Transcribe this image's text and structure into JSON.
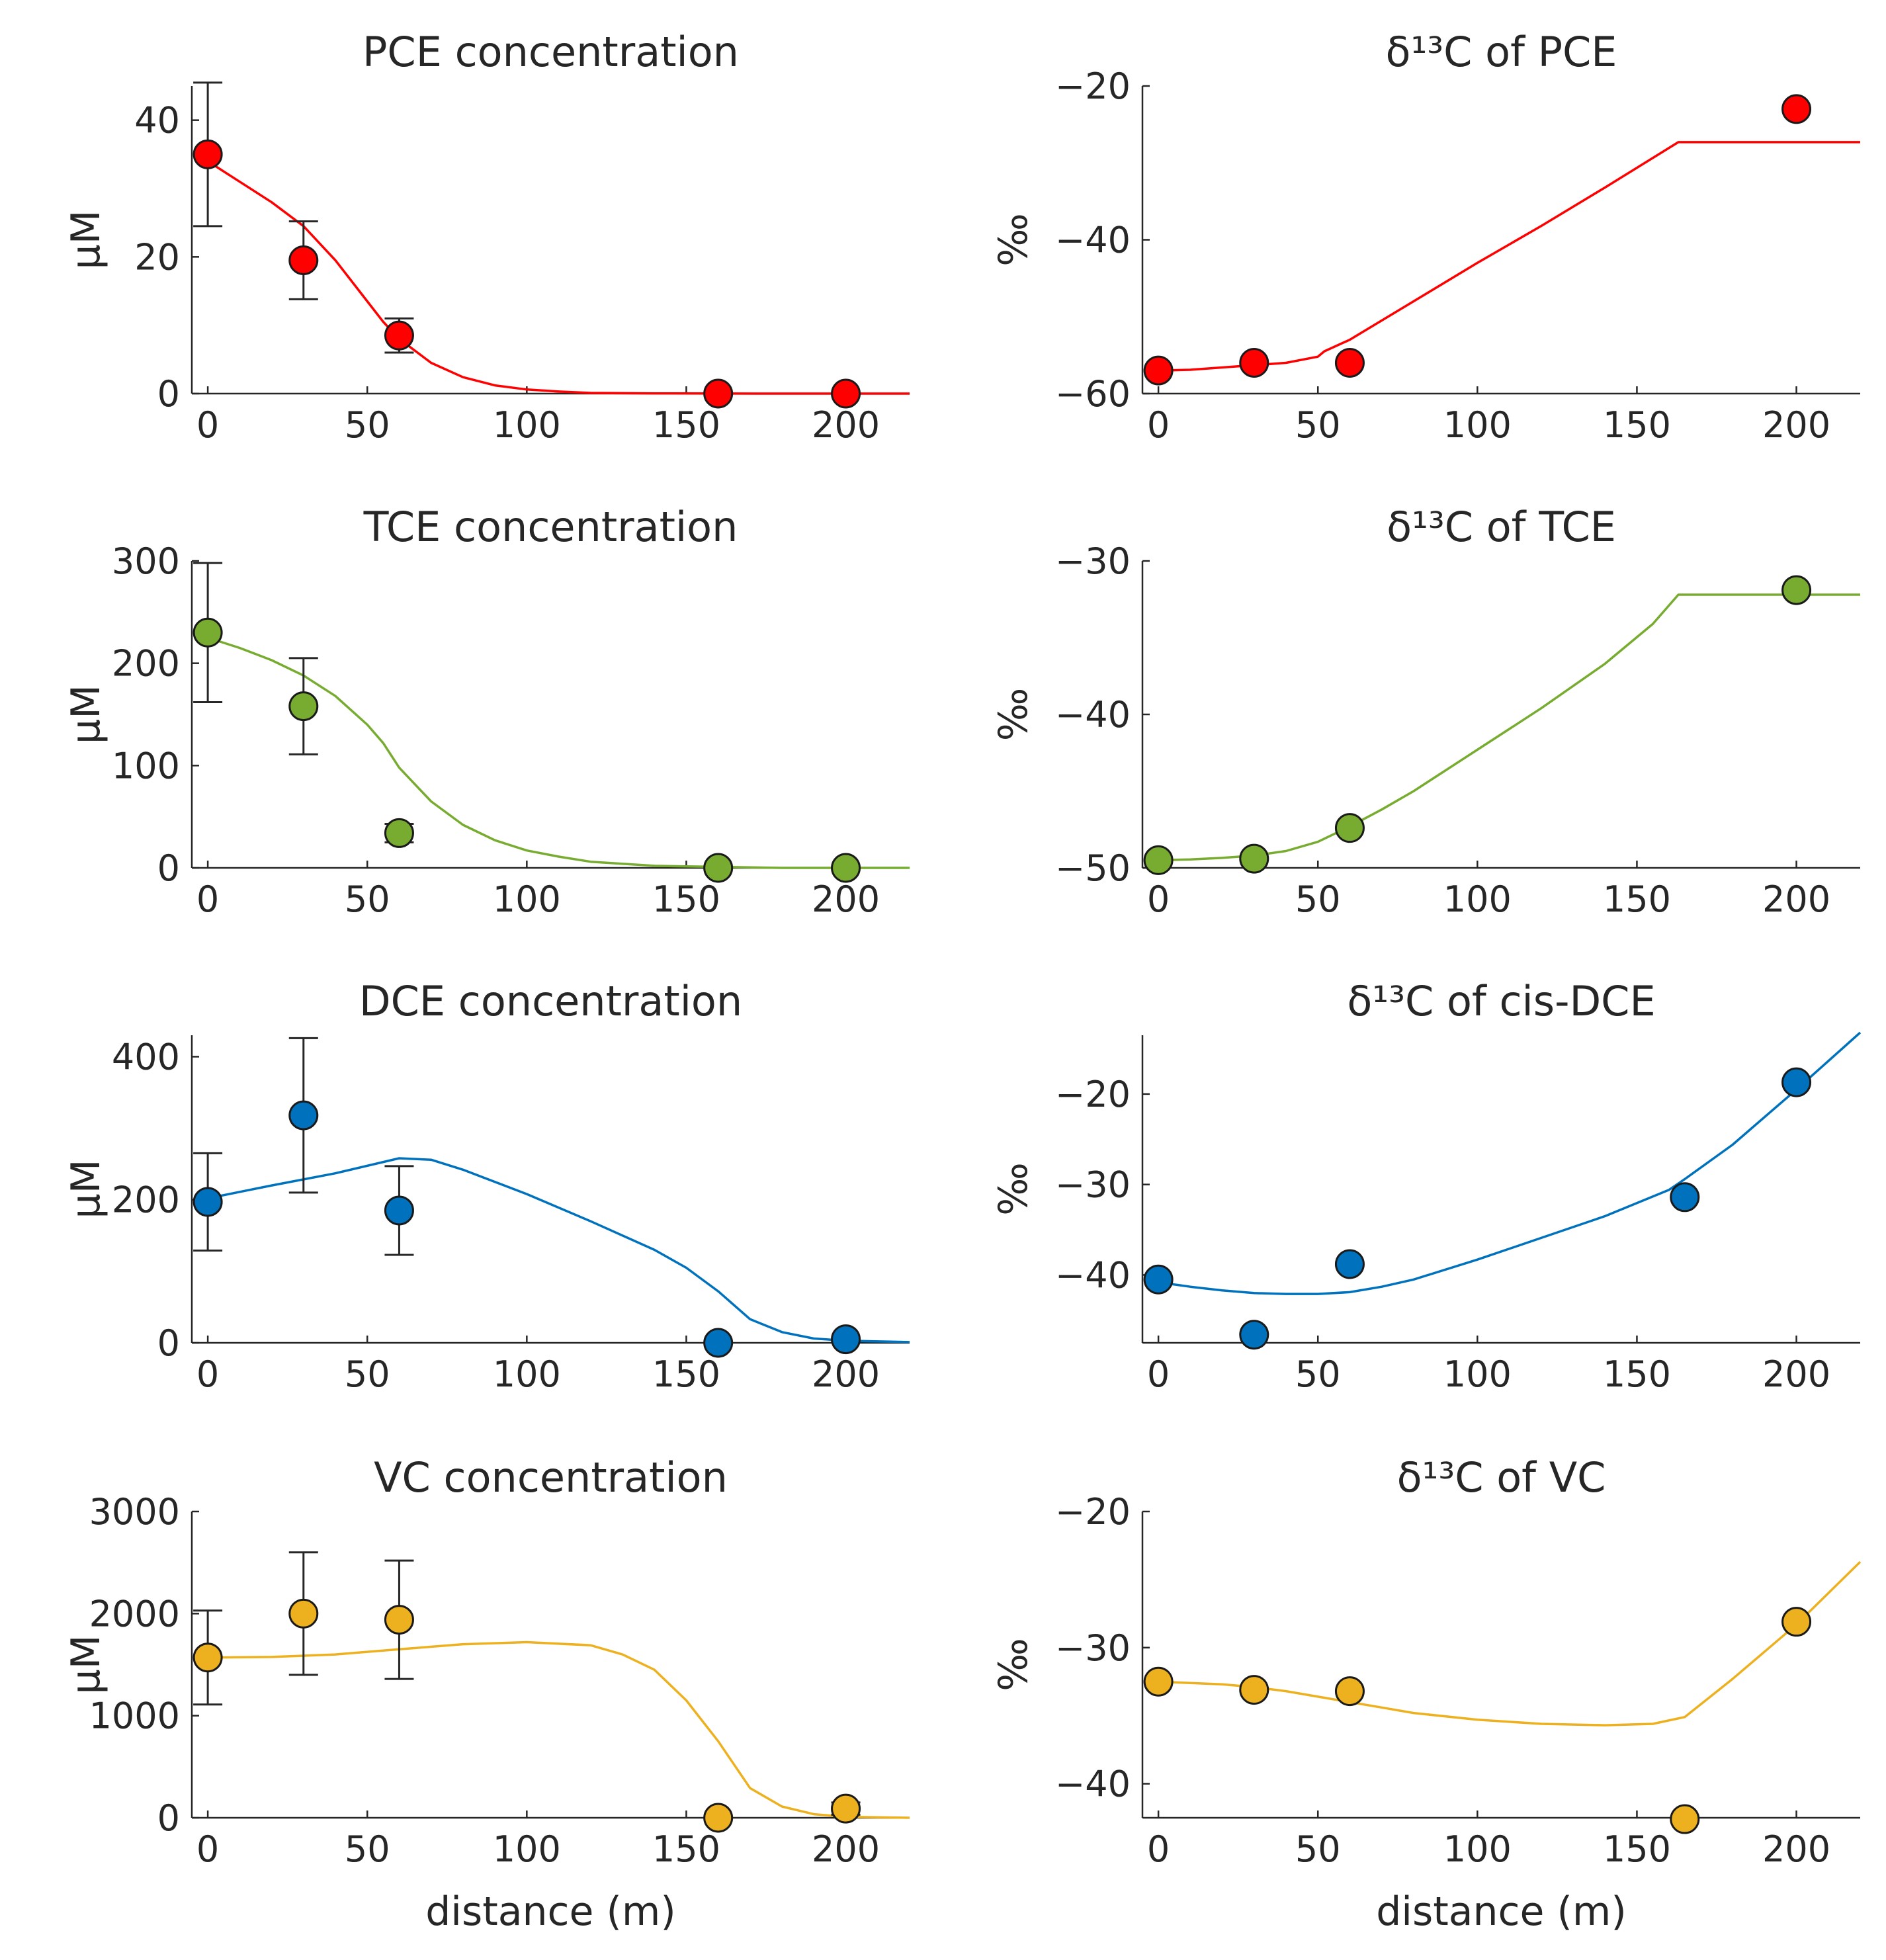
{
  "figure": {
    "xlabel": "distance (m)"
  },
  "chart_data": [
    {
      "id": "pce-conc",
      "type": "scatter+line",
      "title": "PCE concentration",
      "ylabel": "μM",
      "xlabel": "",
      "xlim": [
        -5,
        220
      ],
      "ylim": [
        0,
        45
      ],
      "xticks": [
        0,
        50,
        100,
        150,
        200
      ],
      "yticks": [
        0,
        20,
        40
      ],
      "color": "#ff0000",
      "points": {
        "x": [
          0,
          30,
          60,
          160,
          200
        ],
        "y": [
          35,
          19.5,
          8.5,
          0,
          0
        ],
        "err": [
          10.5,
          5.7,
          2.5,
          null,
          null
        ]
      },
      "model": {
        "x": [
          0,
          10,
          20,
          30,
          40,
          50,
          55,
          60,
          70,
          80,
          90,
          100,
          110,
          120,
          140,
          160,
          180,
          200,
          220
        ],
        "y": [
          34,
          31,
          28,
          24.5,
          19.5,
          13.5,
          10.5,
          8,
          4.5,
          2.4,
          1.2,
          0.6,
          0.3,
          0.1,
          0.03,
          0.01,
          0,
          0,
          0
        ]
      }
    },
    {
      "id": "pce-d13c",
      "type": "scatter+line",
      "title": "δ¹³C of PCE",
      "ylabel": "‰",
      "xlabel": "",
      "xlim": [
        -5,
        220
      ],
      "ylim": [
        -60,
        -20
      ],
      "xticks": [
        0,
        50,
        100,
        150,
        200
      ],
      "yticks": [
        -60,
        -40,
        -20
      ],
      "color": "#ff0000",
      "points": {
        "x": [
          0,
          30,
          60,
          200
        ],
        "y": [
          -57,
          -56,
          -56,
          -23
        ],
        "err": [
          null,
          null,
          null,
          null
        ]
      },
      "model": {
        "x": [
          0,
          10,
          20,
          30,
          40,
          50,
          52,
          60,
          80,
          100,
          120,
          140,
          163,
          180,
          200,
          220
        ],
        "y": [
          -57,
          -56.9,
          -56.6,
          -56.3,
          -56,
          -55.2,
          -54.5,
          -53,
          -48,
          -43,
          -38.2,
          -33.2,
          -27.3,
          -27.3,
          -27.3,
          -27.3
        ]
      }
    },
    {
      "id": "tce-conc",
      "type": "scatter+line",
      "title": "TCE concentration",
      "ylabel": "μM",
      "xlabel": "",
      "xlim": [
        -5,
        220
      ],
      "ylim": [
        0,
        300
      ],
      "xticks": [
        0,
        50,
        100,
        150,
        200
      ],
      "yticks": [
        0,
        100,
        200,
        300
      ],
      "color": "#77ac30",
      "points": {
        "x": [
          0,
          30,
          60,
          160,
          200
        ],
        "y": [
          230,
          158,
          34,
          0,
          0
        ],
        "err": [
          68,
          47,
          9,
          null,
          null
        ]
      },
      "model": {
        "x": [
          0,
          10,
          20,
          30,
          40,
          50,
          55,
          60,
          70,
          80,
          90,
          100,
          110,
          120,
          140,
          160,
          180,
          200,
          220
        ],
        "y": [
          225,
          215,
          203,
          188,
          168,
          140,
          122,
          98,
          65,
          42,
          27,
          17,
          11,
          6,
          2,
          1,
          0,
          0,
          0
        ]
      }
    },
    {
      "id": "tce-d13c",
      "type": "scatter+line",
      "title": "δ¹³C of TCE",
      "ylabel": "‰",
      "xlabel": "",
      "xlim": [
        -5,
        220
      ],
      "ylim": [
        -50,
        -30
      ],
      "xticks": [
        0,
        50,
        100,
        150,
        200
      ],
      "yticks": [
        -50,
        -40,
        -30
      ],
      "color": "#77ac30",
      "points": {
        "x": [
          0,
          30,
          60,
          200
        ],
        "y": [
          -49.5,
          -49.4,
          -47.4,
          -31.9
        ],
        "err": [
          null,
          null,
          null,
          null
        ]
      },
      "model": {
        "x": [
          0,
          10,
          20,
          30,
          40,
          50,
          60,
          70,
          80,
          100,
          120,
          140,
          155,
          163,
          180,
          200,
          220
        ],
        "y": [
          -49.5,
          -49.45,
          -49.35,
          -49.2,
          -48.9,
          -48.3,
          -47.3,
          -46.2,
          -45,
          -42.3,
          -39.6,
          -36.7,
          -34.1,
          -32.2,
          -32.2,
          -32.2,
          -32.2
        ]
      }
    },
    {
      "id": "dce-conc",
      "type": "scatter+line",
      "title": "DCE concentration",
      "ylabel": "μM",
      "xlabel": "",
      "xlim": [
        -5,
        220
      ],
      "ylim": [
        0,
        430
      ],
      "xticks": [
        0,
        50,
        100,
        150,
        200
      ],
      "yticks": [
        0,
        200,
        400
      ],
      "color": "#0072bd",
      "points": {
        "x": [
          0,
          30,
          60,
          160,
          200
        ],
        "y": [
          197,
          318,
          185,
          0,
          5
        ],
        "err": [
          68,
          108,
          62,
          null,
          null
        ]
      },
      "model": {
        "x": [
          0,
          20,
          40,
          60,
          70,
          80,
          100,
          120,
          140,
          150,
          160,
          170,
          180,
          190,
          200,
          220
        ],
        "y": [
          202,
          220,
          237,
          258,
          256,
          242,
          208,
          170,
          130,
          105,
          72,
          33,
          15,
          6,
          3,
          1
        ]
      }
    },
    {
      "id": "dce-d13c",
      "type": "scatter+line",
      "title": "δ¹³C of cis-DCE",
      "ylabel": "‰",
      "xlabel": "",
      "xlim": [
        -5,
        220
      ],
      "ylim": [
        -47.5,
        -13.5
      ],
      "xticks": [
        0,
        50,
        100,
        150,
        200
      ],
      "yticks": [
        -40,
        -30,
        -20
      ],
      "color": "#0072bd",
      "points": {
        "x": [
          0,
          30,
          60,
          165,
          200
        ],
        "y": [
          -40.5,
          -46.6,
          -38.8,
          -31.4,
          -18.7
        ],
        "err": [
          null,
          null,
          null,
          null,
          null
        ]
      },
      "model": {
        "x": [
          0,
          10,
          20,
          30,
          40,
          50,
          60,
          70,
          80,
          100,
          120,
          140,
          160,
          165,
          180,
          200,
          220
        ],
        "y": [
          -40.8,
          -41.3,
          -41.7,
          -42,
          -42.1,
          -42.1,
          -41.9,
          -41.3,
          -40.5,
          -38.3,
          -35.9,
          -33.5,
          -30.6,
          -29.4,
          -25.6,
          -19.5,
          -13.2
        ]
      }
    },
    {
      "id": "vc-conc",
      "type": "scatter+line",
      "title": "VC concentration",
      "ylabel": "μM",
      "xlabel": "distance (m)",
      "xlim": [
        -5,
        220
      ],
      "ylim": [
        0,
        3000
      ],
      "xticks": [
        0,
        50,
        100,
        150,
        200
      ],
      "yticks": [
        0,
        1000,
        2000,
        3000
      ],
      "color": "#edb120",
      "points": {
        "x": [
          0,
          30,
          60,
          160,
          200
        ],
        "y": [
          1570,
          2000,
          1940,
          0,
          90
        ],
        "err": [
          460,
          600,
          580,
          null,
          60
        ]
      },
      "model": {
        "x": [
          0,
          20,
          40,
          60,
          80,
          100,
          120,
          130,
          140,
          150,
          160,
          170,
          180,
          190,
          200,
          220
        ],
        "y": [
          1570,
          1575,
          1600,
          1650,
          1700,
          1720,
          1690,
          1600,
          1450,
          1150,
          750,
          290,
          110,
          35,
          10,
          0
        ]
      }
    },
    {
      "id": "vc-d13c",
      "type": "scatter+line",
      "title": "δ¹³C of VC",
      "ylabel": "‰",
      "xlabel": "distance (m)",
      "xlim": [
        -5,
        220
      ],
      "ylim": [
        -42.5,
        -20
      ],
      "xticks": [
        0,
        50,
        100,
        150,
        200
      ],
      "yticks": [
        -40,
        -30,
        -20
      ],
      "color": "#edb120",
      "points": {
        "x": [
          0,
          30,
          60,
          165,
          200
        ],
        "y": [
          -32.5,
          -33.1,
          -33.2,
          -42.6,
          -28.1
        ],
        "err": [
          null,
          null,
          null,
          null,
          null
        ]
      },
      "model": {
        "x": [
          0,
          10,
          20,
          30,
          40,
          50,
          60,
          70,
          80,
          100,
          120,
          140,
          155,
          165,
          180,
          200,
          220
        ],
        "y": [
          -32.5,
          -32.6,
          -32.7,
          -32.9,
          -33.2,
          -33.6,
          -34,
          -34.4,
          -34.8,
          -35.3,
          -35.6,
          -35.7,
          -35.6,
          -35.1,
          -32.3,
          -28.3,
          -23.7
        ]
      }
    }
  ]
}
